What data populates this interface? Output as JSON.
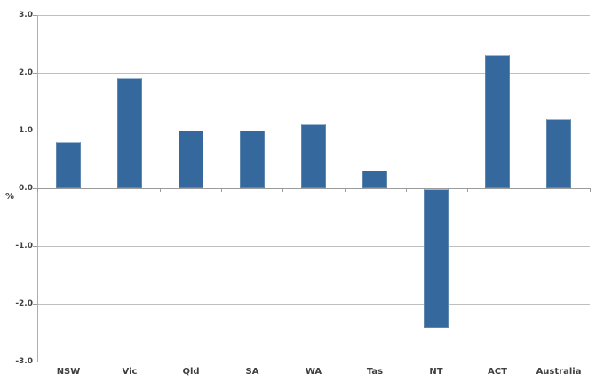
{
  "chart_data": {
    "type": "bar",
    "categories": [
      "NSW",
      "Vic",
      "Qld",
      "SA",
      "WA",
      "Tas",
      "NT",
      "ACT",
      "Australia"
    ],
    "values": [
      0.8,
      1.9,
      1.0,
      1.0,
      1.1,
      0.3,
      -2.4,
      2.3,
      1.2
    ],
    "title": "",
    "xlabel": "",
    "ylabel": "%",
    "ylim": [
      -3.0,
      3.0
    ],
    "y_tick_step": 1.0,
    "y_tick_labels": [
      "3.0",
      "2.0",
      "1.0",
      "0.0",
      "-1.0",
      "-2.0",
      "-3.0"
    ],
    "grid": true,
    "legend": "none",
    "colors": {
      "bar": "#35689d",
      "bar_edge": "#5e87b0",
      "gridline": "#bfbfbf",
      "axis": "#9b9b9b",
      "text": "#3f3f3f"
    }
  }
}
